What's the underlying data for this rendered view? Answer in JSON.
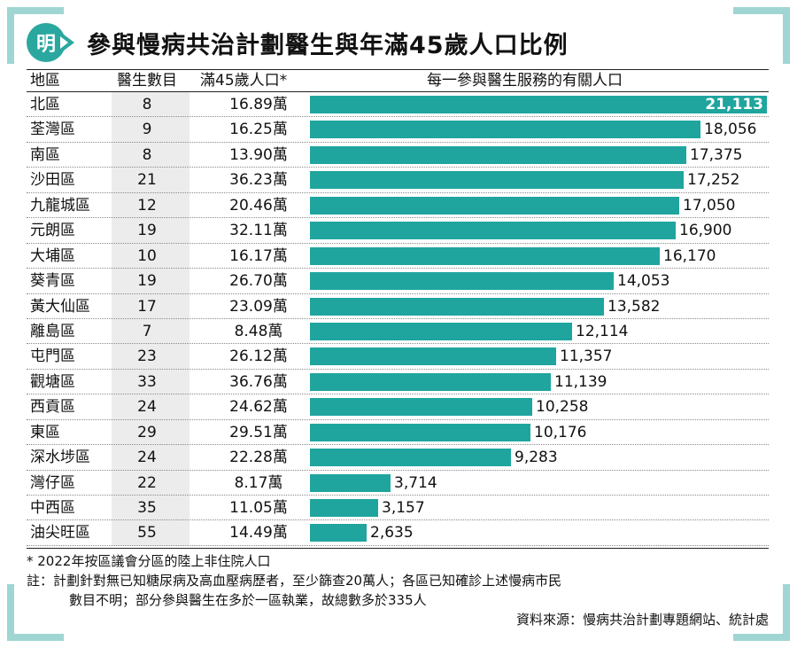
{
  "logo_text": "明",
  "title": "參與慢病共治計劃醫生與年滿45歲人口比例",
  "headers": {
    "district": "地區",
    "doctors": "醫生數目",
    "population": "滿45歲人口*",
    "per_doctor": "每一參與醫生服務的有關人口"
  },
  "rows": [
    {
      "district": "北區",
      "doctors": "8",
      "population": "16.89萬",
      "per_doctor": "21,113"
    },
    {
      "district": "荃灣區",
      "doctors": "9",
      "population": "16.25萬",
      "per_doctor": "18,056"
    },
    {
      "district": "南區",
      "doctors": "8",
      "population": "13.90萬",
      "per_doctor": "17,375"
    },
    {
      "district": "沙田區",
      "doctors": "21",
      "population": "36.23萬",
      "per_doctor": "17,252"
    },
    {
      "district": "九龍城區",
      "doctors": "12",
      "population": "20.46萬",
      "per_doctor": "17,050"
    },
    {
      "district": "元朗區",
      "doctors": "19",
      "population": "32.11萬",
      "per_doctor": "16,900"
    },
    {
      "district": "大埔區",
      "doctors": "10",
      "population": "16.17萬",
      "per_doctor": "16,170"
    },
    {
      "district": "葵青區",
      "doctors": "19",
      "population": "26.70萬",
      "per_doctor": "14,053"
    },
    {
      "district": "黃大仙區",
      "doctors": "17",
      "population": "23.09萬",
      "per_doctor": "13,582"
    },
    {
      "district": "離島區",
      "doctors": "7",
      "population": "8.48萬",
      "per_doctor": "12,114"
    },
    {
      "district": "屯門區",
      "doctors": "23",
      "population": "26.12萬",
      "per_doctor": "11,357"
    },
    {
      "district": "觀塘區",
      "doctors": "33",
      "population": "36.76萬",
      "per_doctor": "11,139"
    },
    {
      "district": "西貢區",
      "doctors": "24",
      "population": "24.62萬",
      "per_doctor": "10,258"
    },
    {
      "district": "東區",
      "doctors": "29",
      "population": "29.51萬",
      "per_doctor": "10,176"
    },
    {
      "district": "深水埗區",
      "doctors": "24",
      "population": "22.28萬",
      "per_doctor": "9,283"
    },
    {
      "district": "灣仔區",
      "doctors": "22",
      "population": "8.17萬",
      "per_doctor": "3,714"
    },
    {
      "district": "中西區",
      "doctors": "35",
      "population": "11.05萬",
      "per_doctor": "3,157"
    },
    {
      "district": "油尖旺區",
      "doctors": "55",
      "population": "14.49萬",
      "per_doctor": "2,635"
    }
  ],
  "chart_data": {
    "type": "bar",
    "orientation": "horizontal",
    "title": "參與慢病共治計劃醫生與年滿45歲人口比例",
    "categories": [
      "北區",
      "荃灣區",
      "南區",
      "沙田區",
      "九龍城區",
      "元朗區",
      "大埔區",
      "葵青區",
      "黃大仙區",
      "離島區",
      "屯門區",
      "觀塘區",
      "西貢區",
      "東區",
      "深水埗區",
      "灣仔區",
      "中西區",
      "油尖旺區"
    ],
    "values": [
      21113,
      18056,
      17375,
      17252,
      17050,
      16900,
      16170,
      14053,
      13582,
      12114,
      11357,
      11139,
      10258,
      10176,
      9283,
      3714,
      3157,
      2635
    ],
    "xlim": [
      0,
      21113
    ],
    "bar_color": "#1fa59e",
    "highlight_label_inside": "北區",
    "grid": false
  },
  "footnote": "* 2022年按區議會分區的陸上非住院人口",
  "note_lines": [
    "註：計劃針對無已知糖尿病及高血壓病歷者，至少篩查20萬人；各區已知確診上述慢病市民",
    "數目不明；部分參與醫生在多於一區執業，故總數多於335人"
  ],
  "source": "資料來源：慢病共治計劃專題網站、統計處",
  "colors": {
    "accent": "#1fa59e",
    "logo": "#2aa79f",
    "frame": "#9fd6d2",
    "doctors_column_bg": "#ececec"
  }
}
